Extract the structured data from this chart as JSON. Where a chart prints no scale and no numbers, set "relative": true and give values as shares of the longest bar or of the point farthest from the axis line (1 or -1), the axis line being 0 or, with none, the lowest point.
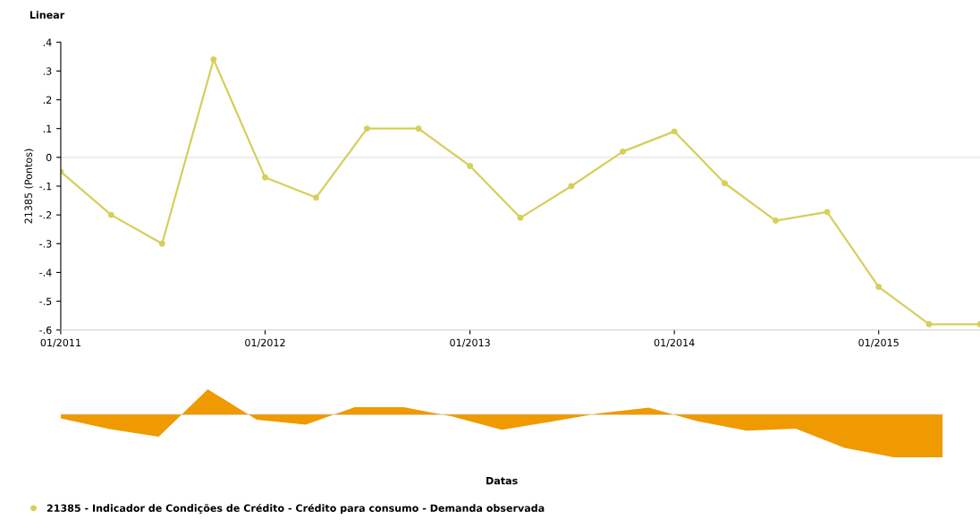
{
  "chart_data": [
    {
      "type": "line",
      "title": "Linear",
      "ylabel": "21385 (Pontos)",
      "x": [
        "2011-01",
        "2011-04",
        "2011-07",
        "2011-10",
        "2012-01",
        "2012-04",
        "2012-07",
        "2012-10",
        "2013-01",
        "2013-04",
        "2013-07",
        "2013-10",
        "2014-01",
        "2014-04",
        "2014-07",
        "2014-10",
        "2015-01",
        "2015-04",
        "2015-07"
      ],
      "series": [
        {
          "name": "21385 - Indicador de Condições de Crédito - Crédito para consumo - Demanda observada",
          "color": "#d6cf5a",
          "values": [
            -0.05,
            -0.2,
            -0.3,
            0.34,
            -0.07,
            -0.14,
            0.1,
            0.1,
            -0.03,
            -0.21,
            -0.1,
            0.02,
            0.09,
            -0.09,
            -0.22,
            -0.19,
            -0.45,
            -0.58,
            -0.58
          ]
        }
      ],
      "xlim": [
        "2011-01",
        "2015-07"
      ],
      "xticks": [
        {
          "value": "2011-01",
          "label": "01/2011"
        },
        {
          "value": "2012-01",
          "label": "01/2012"
        },
        {
          "value": "2013-01",
          "label": "01/2013"
        },
        {
          "value": "2014-01",
          "label": "01/2014"
        },
        {
          "value": "2015-01",
          "label": "01/2015"
        }
      ],
      "ylim": [
        -0.6,
        0.4
      ],
      "yticks": [
        {
          "value": -0.6,
          "label": "-.6"
        },
        {
          "value": -0.5,
          "label": "-.5"
        },
        {
          "value": -0.4,
          "label": "-.4"
        },
        {
          "value": -0.3,
          "label": "-.3"
        },
        {
          "value": -0.2,
          "label": "-.2"
        },
        {
          "value": -0.1,
          "label": "-.1"
        },
        {
          "value": 0,
          "label": "0"
        },
        {
          "value": 0.1,
          "label": ".1"
        },
        {
          "value": 0.2,
          "label": ".2"
        },
        {
          "value": 0.3,
          "label": ".3"
        },
        {
          "value": 0.4,
          "label": ".4"
        }
      ],
      "ref_lines": [
        {
          "axis": "y",
          "value": 0,
          "color": "#e4e4e4"
        }
      ],
      "marker": "circle",
      "legend": "bottom",
      "grid": false
    },
    {
      "type": "area",
      "xlabel": "Datas",
      "relative": true,
      "categories": [
        null,
        null,
        null,
        null,
        null,
        null,
        null,
        null,
        null,
        null,
        null,
        null,
        null,
        null,
        null,
        null,
        null,
        null,
        null
      ],
      "series": [
        {
          "color": "#ee9a00",
          "values": [
            -0.09,
            -0.34,
            -0.52,
            0.59,
            -0.12,
            -0.24,
            0.17,
            0.17,
            -0.05,
            -0.36,
            -0.17,
            0.03,
            0.16,
            -0.16,
            -0.38,
            -0.33,
            -0.78,
            -1,
            -1
          ]
        }
      ]
    }
  ]
}
